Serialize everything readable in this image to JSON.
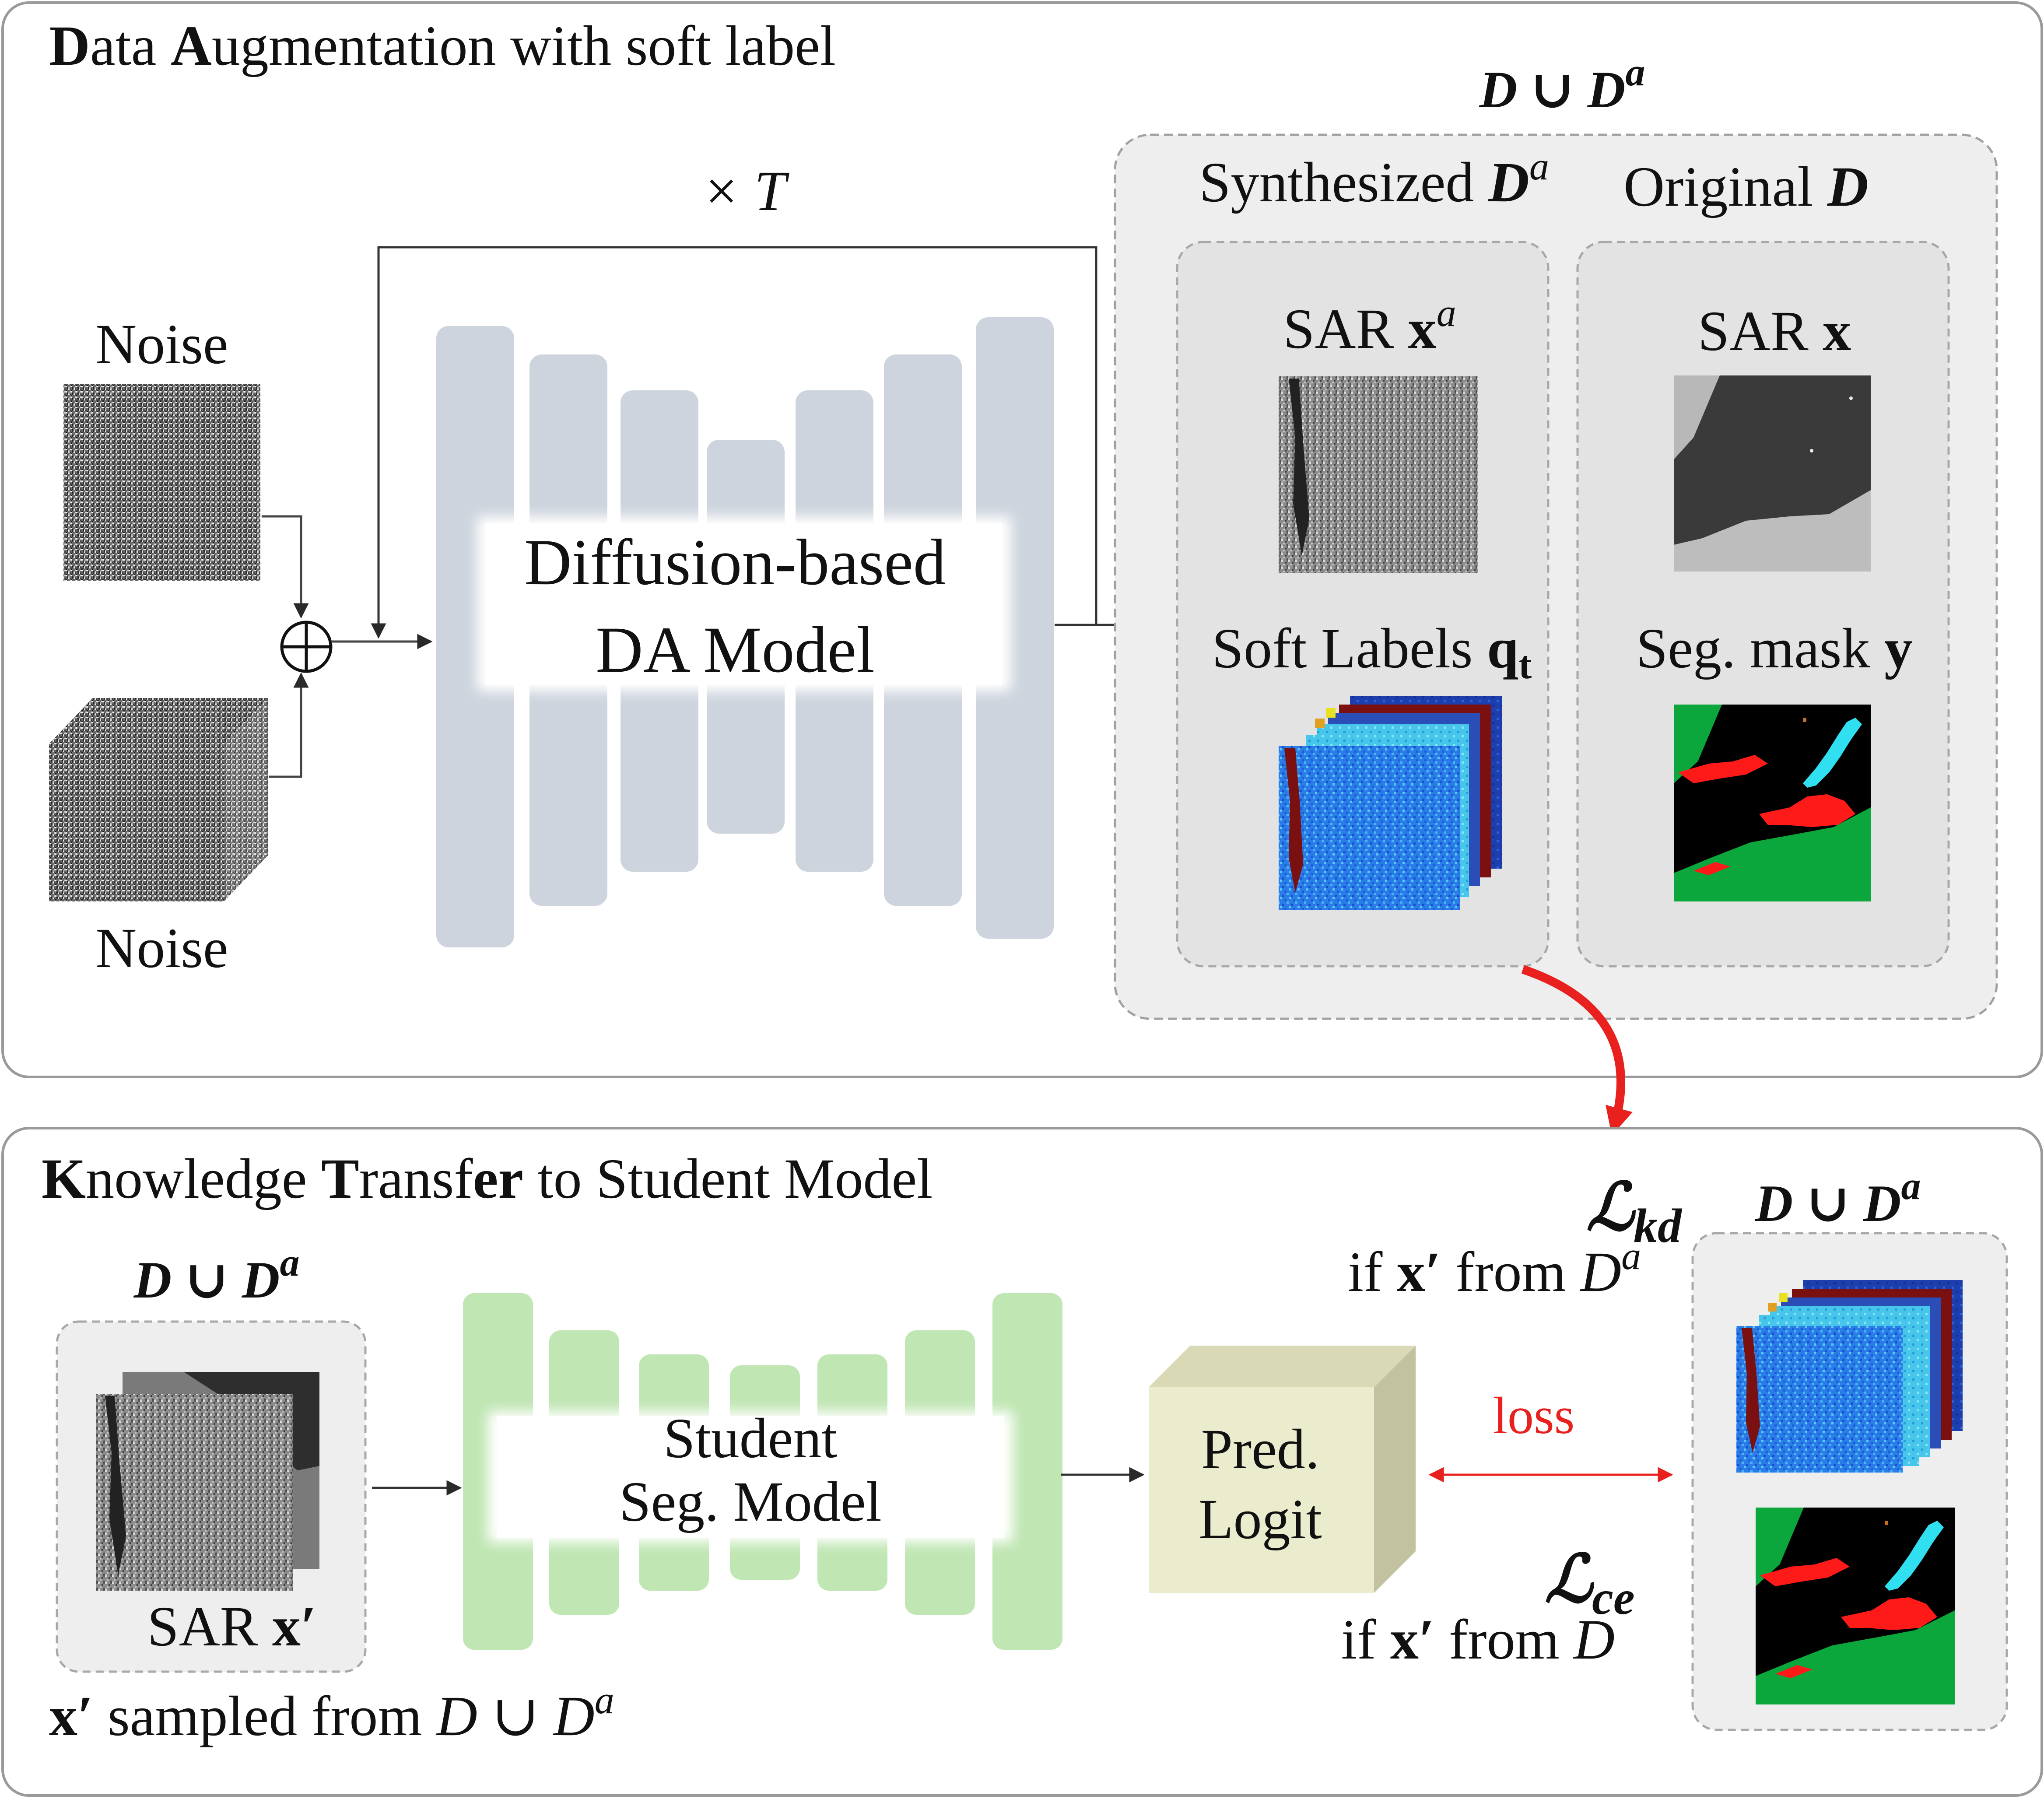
{
  "top_panel": {
    "title_bold_1": "D",
    "title_rest_1": "ata ",
    "title_bold_2": "A",
    "title_rest_2": "ugmentation with soft label",
    "noise_label_top": "Noise",
    "noise_label_bottom": "Noise",
    "loop_label": "× T",
    "model_line1": "Diffusion-based",
    "model_line2": "DA Model",
    "union_label": "D ∪ D",
    "union_sup": "a",
    "synth_title": "Synthesized ",
    "synth_var": "D",
    "synth_sup": "a",
    "orig_title": "Original ",
    "orig_var": "D",
    "sar_xa": "SAR ",
    "sar_xa_var": "x",
    "sar_xa_sup": "a",
    "soft_labels": "Soft Labels ",
    "soft_labels_var": "q",
    "soft_labels_sub": "t",
    "sar_x": "SAR ",
    "sar_x_var": "x",
    "seg_mask": "Seg. mask ",
    "seg_mask_var": "y"
  },
  "bottom_panel": {
    "title_bold_1": "K",
    "title_rest_1": "nowledge ",
    "title_bold_2": "T",
    "title_rest_2": "rans",
    "title_rest_3": "f",
    "title_bold_3": "er",
    "title_rest_4": " to Student Model",
    "input_union": "D ∪ D",
    "input_union_sup": "a",
    "sar_xp": "SAR ",
    "sar_xp_var": "x′",
    "sampled_var": "x′",
    "sampled_text": " sampled from ",
    "sampled_set": "D ∪ D",
    "sampled_sup": "a",
    "student_line1": "Student",
    "student_line2": "Seg. Model",
    "pred_line1": "Pred.",
    "pred_line2": "Logit",
    "loss": "loss",
    "lkd": "ℒ",
    "lkd_sub": "kd",
    "lkd_cond_1": "if ",
    "lkd_cond_var": "x′",
    "lkd_cond_2": " from ",
    "lkd_cond_set": "D",
    "lkd_cond_sup": "a",
    "lce": "ℒ",
    "lce_sub": "ce",
    "lce_cond_1": "if ",
    "lce_cond_var": "x′",
    "lce_cond_2": " from ",
    "lce_cond_set": "D",
    "out_union": "D ∪ D",
    "out_union_sup": "a"
  },
  "colors": {
    "panel_border": "#9a9a9a",
    "group_bg": "#eeeeee",
    "inner_bg": "#e3e3e3",
    "unet_gray": "#cdd4dd",
    "unet_green": "#c0e6b3",
    "logit_front": "#ebebcd",
    "logit_side": "#c2c2a0",
    "logit_top": "#d9d9b5",
    "loss_red": "#e8201e",
    "mask_black": "#000000",
    "mask_green": "#0ba63c",
    "mask_red": "#ff1a1a",
    "mask_cyan": "#31e0f0",
    "soft_blue": "#1f78e6",
    "soft_maroon": "#7a1010"
  }
}
